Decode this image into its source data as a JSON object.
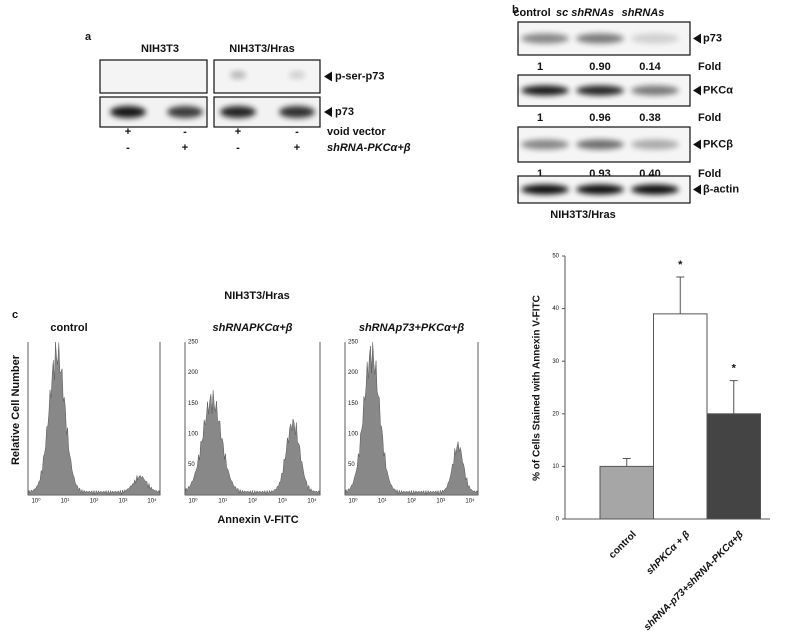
{
  "panel_a": {
    "label": "a",
    "cell_lines": [
      "NIH3T3",
      "NIH3T3/Hras"
    ],
    "blots": [
      "p-ser-p73",
      "p73"
    ],
    "conditions": [
      {
        "name": "void vector",
        "signs": [
          "+",
          "-",
          "+",
          "-"
        ]
      },
      {
        "name": "shRNA-PKCα+β",
        "signs": [
          "-",
          "+",
          "-",
          "+"
        ]
      }
    ]
  },
  "panel_b": {
    "label": "b",
    "columns": [
      "control",
      "sc shRNAs",
      "shRNAs"
    ],
    "blots": [
      {
        "name": "p73",
        "fold": [
          "1",
          "0.90",
          "0.14"
        ]
      },
      {
        "name": "PKCα",
        "fold": [
          "1",
          "0.96",
          "0.38"
        ]
      },
      {
        "name": "PKCβ",
        "fold": [
          "1",
          "0.93",
          "0.40"
        ]
      },
      {
        "name": "β-actin"
      }
    ],
    "fold_label": "Fold",
    "cell_line": "NIH3T3/Hras"
  },
  "panel_c": {
    "label": "c",
    "title": "NIH3T3/Hras",
    "y_label": "Relative Cell Number",
    "x_label": "Annexin V-FITC",
    "x_tick_labels": [
      "10⁰",
      "10¹",
      "10²",
      "10³",
      "10⁴"
    ],
    "histograms": [
      {
        "title": "control"
      },
      {
        "title": "shRNAPKCα+β",
        "yticks": [
          "250",
          "200",
          "150",
          "100",
          "50"
        ]
      },
      {
        "title": "shRNAp73+PKCα+β",
        "yticks": [
          "250",
          "200",
          "150",
          "100",
          "50"
        ]
      }
    ]
  },
  "chart_data": {
    "type": "bar",
    "y_label": "% of Cells Stained with Annexin V-FITC",
    "categories": [
      "control",
      "shPKCα + β",
      "shRNA-p73+shRNA-PKCα+β"
    ],
    "values": [
      10,
      39,
      20
    ],
    "errors": [
      1.5,
      7,
      6.3
    ],
    "colors": [
      "#a6a6a6",
      "#ffffff",
      "#444444"
    ],
    "annotations": [
      "*",
      "*"
    ],
    "ylim": [
      0,
      50
    ],
    "yticks": [
      0,
      10,
      20,
      30,
      40,
      50
    ]
  }
}
